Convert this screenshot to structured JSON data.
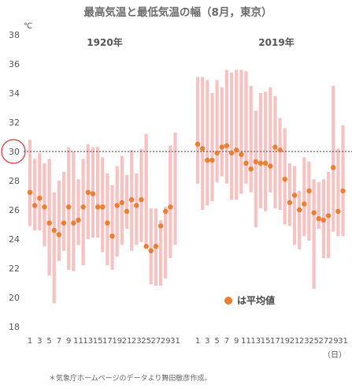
{
  "chart_data": {
    "type": "range-bar",
    "title": "最高気温と最低気温の幅（8月，東京）",
    "y_unit": "℃",
    "x_unit": "（日）",
    "ylim": [
      18,
      38
    ],
    "y_ticks": [
      18,
      20,
      22,
      24,
      26,
      28,
      30,
      32,
      34,
      36,
      38
    ],
    "reference_line": {
      "value": 30,
      "style": "dotted"
    },
    "highlight_tick": "30",
    "legend": "は平均値",
    "footnote": "＊気象庁ホームページのデータより舞田敏彦作成。",
    "colors": {
      "range": "#f7c2c2",
      "mean": "#ed7d31",
      "reference": "#444444",
      "highlight": "#e03030"
    },
    "x_tick_labels": [
      "1",
      "3",
      "5",
      "7",
      "9",
      "11",
      "13",
      "15",
      "17",
      "19",
      "21",
      "23",
      "25",
      "27",
      "29",
      "31"
    ],
    "panels": [
      {
        "label": "1920年",
        "days": [
          1,
          2,
          3,
          4,
          5,
          6,
          7,
          8,
          9,
          10,
          11,
          12,
          13,
          14,
          15,
          16,
          17,
          18,
          19,
          20,
          21,
          22,
          23,
          24,
          25,
          26,
          27,
          28,
          29,
          30,
          31
        ],
        "max": [
          30.8,
          29.5,
          29.9,
          29.2,
          29.5,
          27.2,
          28.0,
          28.6,
          30.3,
          30.0,
          28.1,
          29.5,
          30.5,
          30.3,
          30.3,
          29.6,
          28.5,
          27.7,
          29.0,
          29.7,
          28.4,
          30.1,
          28.5,
          30.2,
          31.2,
          26.1,
          26.1,
          25.3,
          26.2,
          30.4,
          31.3
        ],
        "min": [
          24.9,
          24.6,
          24.6,
          23.5,
          21.5,
          19.6,
          22.5,
          23.2,
          21.9,
          21.8,
          23.6,
          22.2,
          24.0,
          24.1,
          24.1,
          23.1,
          22.2,
          21.9,
          22.8,
          23.6,
          24.7,
          23.2,
          23.6,
          23.8,
          23.6,
          20.9,
          20.8,
          20.8,
          21.3,
          22.7,
          23.6
        ],
        "mean": [
          27.2,
          26.3,
          26.8,
          26.2,
          25.1,
          24.6,
          24.3,
          25.1,
          26.2,
          25.1,
          25.3,
          26.2,
          27.2,
          27.1,
          26.2,
          26.2,
          25.1,
          24.2,
          26.3,
          26.5,
          25.9,
          26.7,
          26.3,
          26.7,
          23.5,
          23.2,
          23.5,
          24.9,
          25.9,
          26.2,
          null
        ]
      },
      {
        "label": "2019年",
        "days": [
          1,
          2,
          3,
          4,
          5,
          6,
          7,
          8,
          9,
          10,
          11,
          12,
          13,
          14,
          15,
          16,
          17,
          18,
          19,
          20,
          21,
          22,
          23,
          24,
          25,
          26,
          27,
          28,
          29,
          30,
          31
        ],
        "max": [
          35.1,
          35.1,
          34.9,
          34.0,
          34.9,
          34.4,
          35.6,
          35.4,
          35.6,
          35.6,
          35.5,
          34.5,
          32.8,
          34.0,
          34.1,
          34.4,
          33.8,
          32.3,
          31.6,
          29.2,
          29.0,
          27.3,
          29.6,
          29.3,
          28.1,
          27.9,
          28.1,
          28.6,
          34.5,
          30.2,
          31.8
        ],
        "min": [
          27.8,
          26.0,
          26.3,
          26.6,
          27.9,
          28.3,
          27.8,
          26.7,
          26.7,
          27.1,
          27.8,
          27.2,
          24.8,
          26.1,
          25.9,
          27.2,
          26.1,
          26.0,
          25.0,
          24.9,
          23.6,
          23.3,
          24.2,
          23.9,
          20.6,
          24.7,
          22.7,
          22.7,
          24.5,
          24.2,
          24.2
        ],
        "mean": [
          30.5,
          30.2,
          29.4,
          29.4,
          29.9,
          30.3,
          30.4,
          29.9,
          30.1,
          29.8,
          29.2,
          28.8,
          29.3,
          29.2,
          29.2,
          29.0,
          30.3,
          30.1,
          28.1,
          26.5,
          27.0,
          26.0,
          26.4,
          27.3,
          25.8,
          25.4,
          25.3,
          25.6,
          28.9,
          25.9,
          27.3
        ]
      }
    ]
  }
}
